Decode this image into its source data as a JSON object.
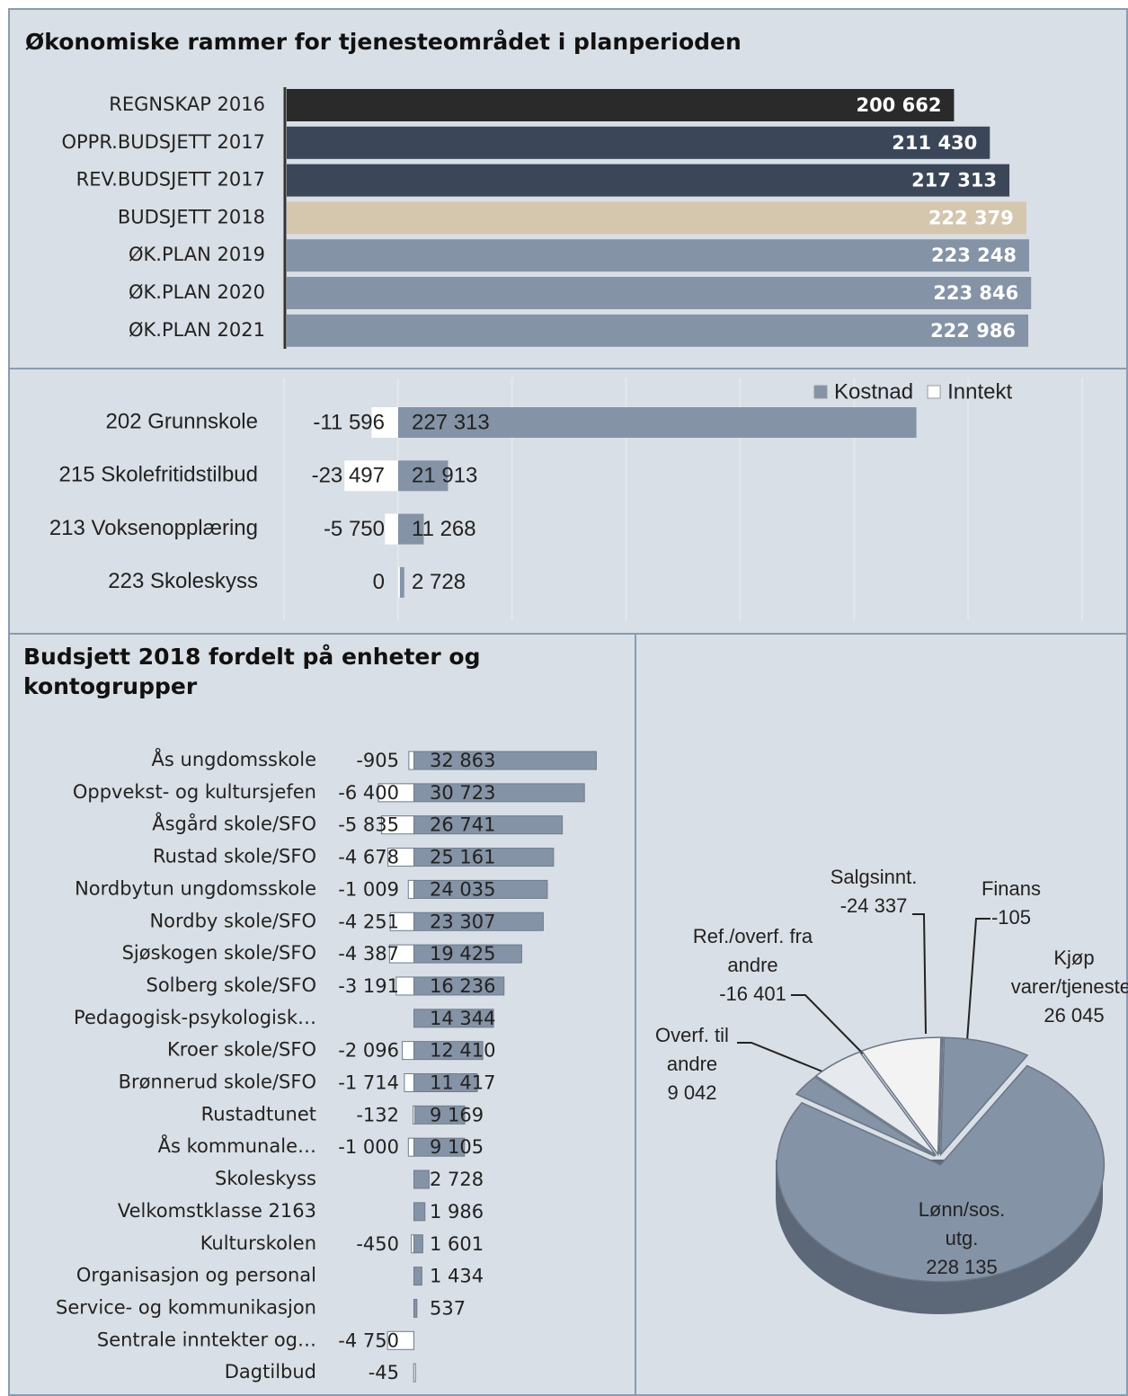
{
  "chart_data": [
    {
      "type": "bar",
      "title": "Økonomiske rammer for tjenesteområdet i planperioden",
      "categories": [
        "REGNSKAP 2016",
        "OPPR.BUDSJETT 2017",
        "REV.BUDSJETT 2017",
        "BUDSJETT 2018",
        "ØK.PLAN 2019",
        "ØK.PLAN 2020",
        "ØK.PLAN 2021"
      ],
      "values": [
        200662,
        211430,
        217313,
        222379,
        223248,
        223846,
        222986
      ],
      "value_labels": [
        "200 662",
        "211 430",
        "217 313",
        "222 379",
        "223 248",
        "223 846",
        "222 986"
      ],
      "colors": [
        "#2a2a2a",
        "#3b4758",
        "#3b4758",
        "#d5c6ae",
        "#8593a7",
        "#8593a7",
        "#8593a7"
      ],
      "xlim": [
        0,
        250000
      ]
    },
    {
      "type": "diverging_bar",
      "categories": [
        "202 Grunnskole",
        "215 Skolefritidstilbud",
        "213 Voksenopplæring",
        "223 Skoleskyss"
      ],
      "series": [
        {
          "name": "Kostnad",
          "color": "#8593a7",
          "values": [
            227313,
            21913,
            11268,
            2728
          ],
          "value_labels": [
            "227 313",
            "21 913",
            "11 268",
            "2 728"
          ]
        },
        {
          "name": "Inntekt",
          "color": "#ffffff",
          "values": [
            -11596,
            -23497,
            -5750,
            0
          ],
          "value_labels": [
            "-11 596",
            "-23 497",
            "-5 750",
            "0"
          ]
        }
      ],
      "xlim": [
        -50000,
        300000
      ],
      "xticks": [
        -50000,
        0,
        50000,
        100000,
        150000,
        200000,
        250000,
        300000
      ],
      "grid": true,
      "legend": "top-right"
    },
    {
      "type": "diverging_bar",
      "title": "Budsjett 2018 fordelt på enheter og kontogrupper",
      "categories": [
        "Ås ungdomsskole",
        "Oppvekst- og kultursjefen",
        "Åsgård skole/SFO",
        "Rustad skole/SFO",
        "Nordbytun ungdomsskole",
        "Nordby skole/SFO",
        "Sjøskogen skole/SFO",
        "Solberg skole/SFO",
        "Pedagogisk-psykologisk…",
        "Kroer skole/SFO",
        "Brønnerud skole/SFO",
        "Rustadtunet",
        "Ås kommunale…",
        "Skoleskyss",
        "Velkomstklasse 2163",
        "Kulturskolen",
        "Organisasjon og personal",
        "Service- og kommunikasjon",
        "Sentrale inntekter og…",
        "Dagtilbud"
      ],
      "series": [
        {
          "name": "Kostnad",
          "color": "#8593a7",
          "values": [
            32863,
            30723,
            26741,
            25161,
            24035,
            23307,
            19425,
            16236,
            14344,
            12410,
            11417,
            9169,
            9105,
            2728,
            1986,
            1601,
            1434,
            537,
            null,
            null
          ],
          "value_labels": [
            "32 863",
            "30 723",
            "26 741",
            "25 161",
            "24 035",
            "23 307",
            "19 425",
            "16 236",
            "14 344",
            "12 410",
            "11 417",
            "9 169",
            "9 105",
            "2 728",
            "1 986",
            "1 601",
            "1 434",
            "537",
            null,
            null
          ]
        },
        {
          "name": "Inntekt",
          "color": "#ffffff",
          "values": [
            -905,
            -6400,
            -5835,
            -4678,
            -1009,
            -4251,
            -4387,
            -3191,
            null,
            -2096,
            -1714,
            -132,
            -1000,
            null,
            null,
            -450,
            null,
            null,
            -4750,
            -45
          ],
          "value_labels": [
            "-905",
            "-6 400",
            "-5 835",
            "-4 678",
            "-1 009",
            "-4 251",
            "-4 387",
            "-3 191",
            null,
            "-2 096",
            "-1 714",
            "-132",
            "-1 000",
            null,
            null,
            "-450",
            null,
            null,
            "-4 750",
            "-45"
          ]
        }
      ],
      "xlim": [
        -20000,
        60000
      ]
    },
    {
      "type": "pie",
      "categories": [
        "Kjøp varer/tjenester",
        "Lønn/sos. utg.",
        "Overf. til andre",
        "Ref./overf. fra andre",
        "Salgsinnt.",
        "Finans"
      ],
      "values": [
        26045,
        228135,
        9042,
        -16401,
        -24337,
        -105
      ],
      "value_labels": [
        "26 045",
        "228 135",
        "9 042",
        "-16 401",
        "-24 337",
        "-105"
      ],
      "colors": [
        "#8593a7",
        "#8593a7",
        "#8593a7",
        "#e6eaee",
        "#f3f3f3",
        "#f3f3f3"
      ]
    }
  ]
}
